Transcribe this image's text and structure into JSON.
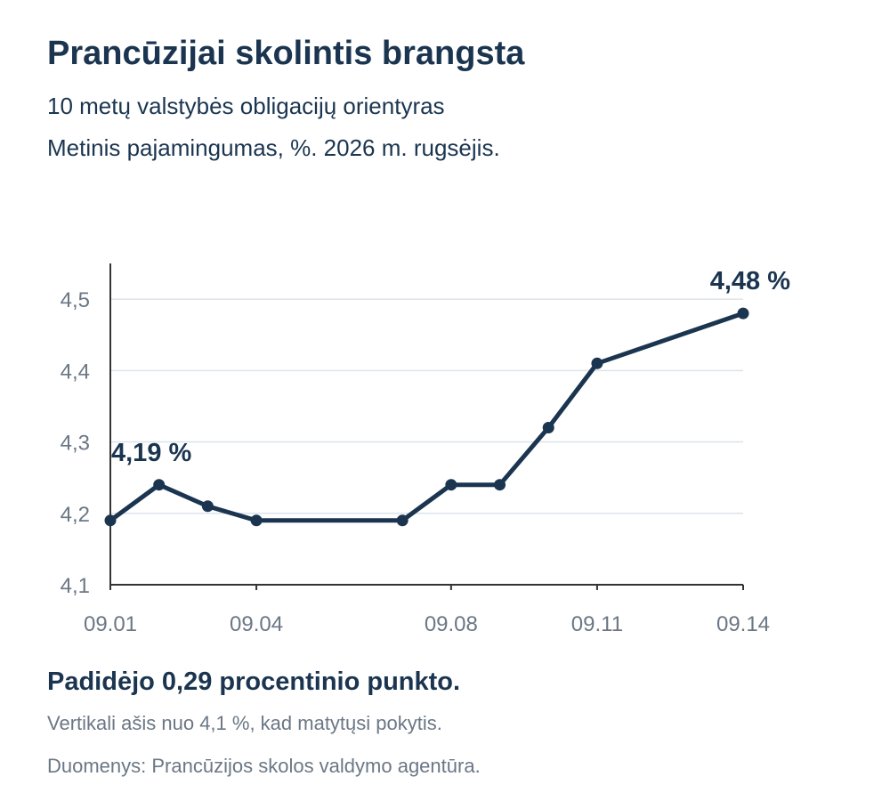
{
  "title": "Prancūzijai skolintis brangsta",
  "subtitle_line1": "10 metų valstybės obligacijų orientyras",
  "subtitle_line2": "Metinis pajamingumas, %. 2026 m. rugsėjis.",
  "footer": {
    "headline": "Padidėjo 0,29 procentinio punkto.",
    "axis_note": "Vertikali ašis nuo 4,1 %, kad matytųsi pokytis.",
    "source": "Duomenys: Prancūzijos skolos valdymo agentūra."
  },
  "colors": {
    "line": "#1b3550",
    "grid": "#dde3ea",
    "axis": "#333333",
    "tick": "#6b7785"
  },
  "chart_data": {
    "type": "line",
    "x": [
      "09.01",
      "09.02",
      "09.03",
      "09.04",
      "09.07",
      "09.08",
      "09.09",
      "09.10",
      "09.11",
      "09.14"
    ],
    "values": [
      4.19,
      4.24,
      4.21,
      4.19,
      4.19,
      4.24,
      4.24,
      4.32,
      4.41,
      4.48
    ],
    "ylim": [
      4.1,
      4.55
    ],
    "yticks": [
      4.1,
      4.2,
      4.3,
      4.4,
      4.5
    ],
    "ytick_labels": [
      "4,1",
      "4,2",
      "4,3",
      "4,4",
      "4,5"
    ],
    "xtick_labels": [
      "09.01",
      "09.04",
      "09.08",
      "09.11",
      "09.14"
    ],
    "grid": "horizontal",
    "annotations": [
      {
        "x": "09.01",
        "text": "4,19 %"
      },
      {
        "x": "09.14",
        "text": "4,48 %"
      }
    ]
  }
}
